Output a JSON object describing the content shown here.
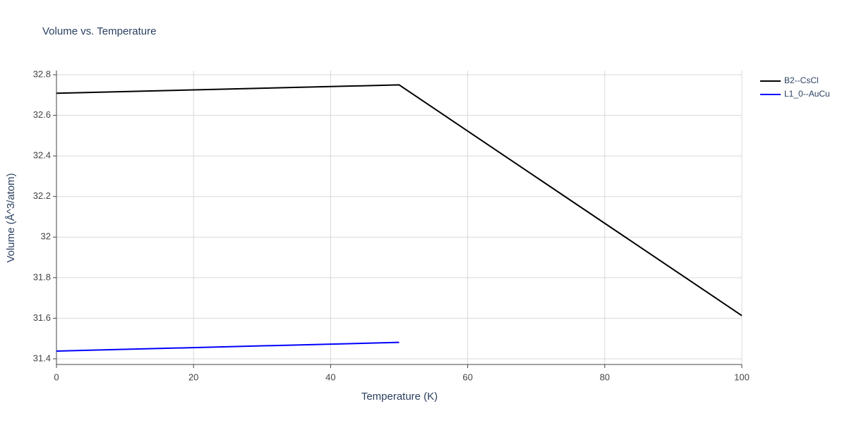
{
  "chart_data": {
    "type": "line",
    "title": "Volume vs. Temperature",
    "x_label": "Temperature (K)",
    "y_label": "Volume (Å^3/atom)",
    "series": [
      {
        "name": "B2--CsCl",
        "color": "#000000",
        "x": [
          0,
          50,
          100
        ],
        "values": [
          32.709,
          32.75,
          31.613
        ]
      },
      {
        "name": "L1_0--AuCu",
        "color": "#0000ff",
        "x": [
          0,
          50
        ],
        "values": [
          31.438,
          31.481
        ]
      }
    ],
    "xlim": [
      0,
      100
    ],
    "xticks": [
      0,
      20,
      40,
      60,
      80,
      100
    ],
    "ylim": [
      31.372,
      32.821
    ],
    "yticks": [
      31.4,
      31.6,
      31.8,
      32,
      32.2,
      32.4,
      32.6,
      32.8
    ],
    "grid": true,
    "legend": "top-right"
  }
}
